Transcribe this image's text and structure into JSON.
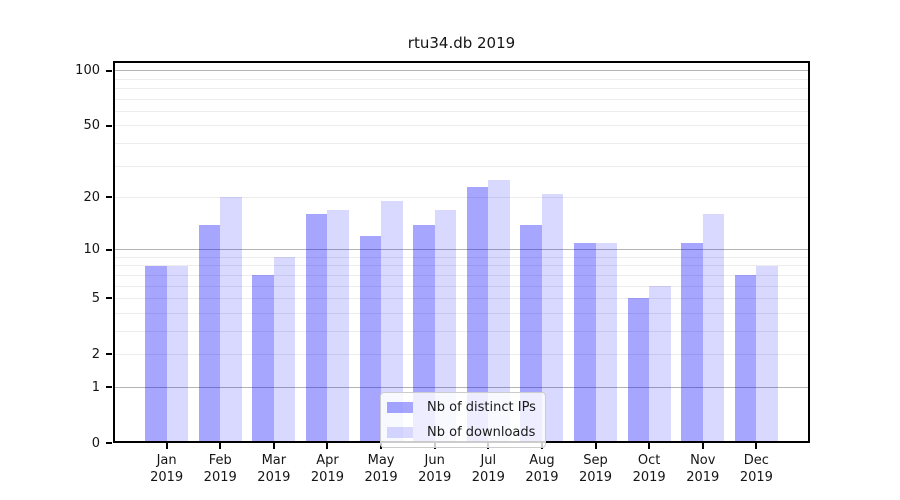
{
  "chart_data": {
    "type": "bar",
    "title": "rtu34.db 2019",
    "categories": [
      "Jan",
      "Feb",
      "Mar",
      "Apr",
      "May",
      "Jun",
      "Jul",
      "Aug",
      "Sep",
      "Oct",
      "Nov",
      "Dec"
    ],
    "category_year": "2019",
    "series": [
      {
        "name": "Nb of distinct IPs",
        "color": "rgba(0,0,255,0.35)",
        "values": [
          8,
          14,
          7,
          16,
          12,
          14,
          23,
          14,
          11,
          5,
          11,
          7
        ]
      },
      {
        "name": "Nb of downloads",
        "color": "rgba(0,0,255,0.15)",
        "values": [
          8,
          20,
          9,
          17,
          19,
          17,
          25,
          21,
          11,
          6,
          16,
          8
        ]
      }
    ],
    "yscale": "log1p",
    "ylim": [
      0,
      113
    ],
    "ytick_labels": [
      100,
      50,
      20,
      10,
      5,
      2,
      1,
      0
    ],
    "major_gridlines": [
      1,
      10,
      100
    ],
    "minor_gridlines": [
      2,
      3,
      4,
      5,
      6,
      7,
      8,
      9,
      20,
      30,
      40,
      50,
      60,
      70,
      80,
      90
    ],
    "grid": true,
    "legend_position": "lower center",
    "axis_color": "#000000",
    "major_grid_color": "#b3b3b3",
    "minor_grid_color": "#ececec"
  }
}
